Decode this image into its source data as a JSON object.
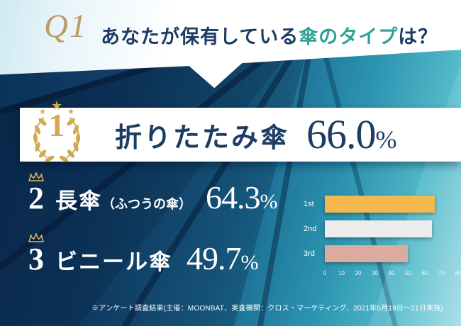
{
  "header": {
    "q_label": "Q1",
    "question_prefix": "あなたが保有している",
    "question_highlight": "傘のタイプ",
    "question_suffix": "は？"
  },
  "ranking": [
    {
      "rank": "1",
      "label": "折りたたみ傘",
      "value": "66.0",
      "unit": "%"
    },
    {
      "rank": "2",
      "label": "長傘",
      "label_note": "（ふつうの傘）",
      "value": "64.3",
      "unit": "%"
    },
    {
      "rank": "3",
      "label": "ビニール傘",
      "value": "49.7",
      "unit": "%"
    }
  ],
  "chart_data": {
    "type": "bar",
    "orientation": "horizontal",
    "categories": [
      "1st",
      "2nd",
      "3rd"
    ],
    "values": [
      66.0,
      64.3,
      49.7
    ],
    "xlim": [
      0,
      80
    ],
    "x_ticks": [
      0,
      10,
      20,
      30,
      40,
      50,
      60,
      70,
      80
    ],
    "bar_colors": [
      "#f3b94f",
      "#ececec",
      "#dcab9f"
    ],
    "grid": false,
    "legend": "none"
  },
  "footnote": "※アンケート調査結果(主催：MOONBAT、実査機関：クロス・マーケティング、2021年5月19日～21日実施)",
  "colors": {
    "gold": "#d2a94e",
    "navy": "#1d3c63",
    "teal_highlight": "#2fa295",
    "band_bg": "#ffffff"
  }
}
